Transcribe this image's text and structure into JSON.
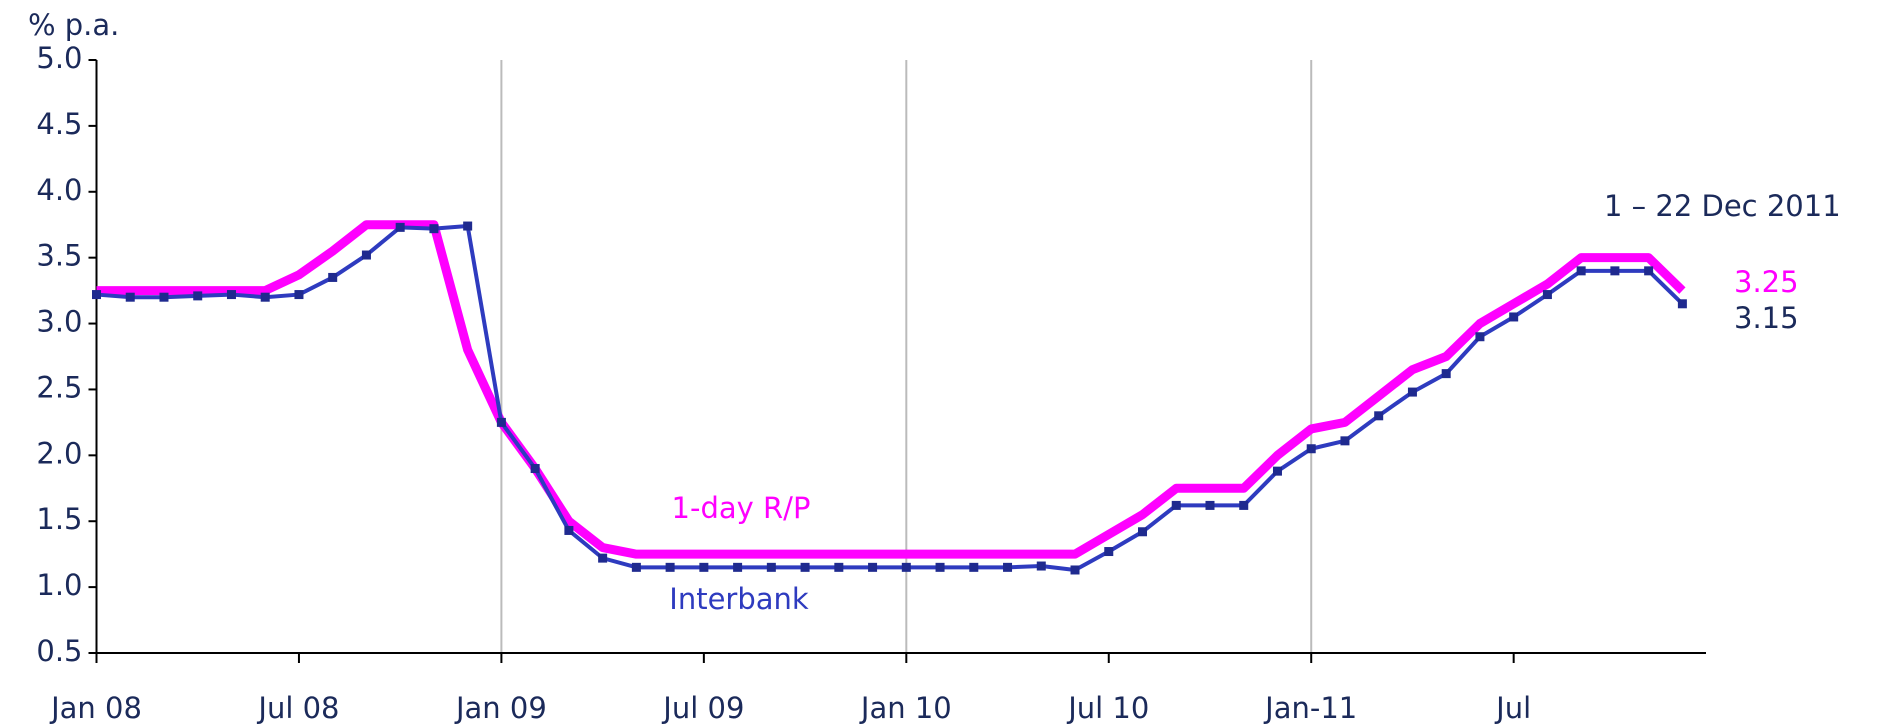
{
  "chart_data": {
    "type": "line",
    "y_label": "% p.a.",
    "annotation": "1 – 22 Dec 2011",
    "categories": [
      "Jan 08",
      null,
      null,
      null,
      null,
      null,
      "Jul 08",
      null,
      null,
      null,
      null,
      null,
      "Jan 09",
      null,
      null,
      null,
      null,
      null,
      "Jul 09",
      null,
      null,
      null,
      null,
      null,
      "Jan 10",
      null,
      null,
      null,
      null,
      null,
      "Jul 10",
      null,
      null,
      null,
      null,
      null,
      "Jan-11",
      null,
      null,
      null,
      null,
      null,
      "Jul",
      null,
      null,
      null,
      null,
      null
    ],
    "series": [
      {
        "name": "1-day R/P",
        "color": "#ff00ff",
        "values": [
          3.25,
          3.25,
          3.25,
          3.25,
          3.25,
          3.25,
          3.37,
          3.55,
          3.75,
          3.75,
          3.75,
          2.8,
          2.25,
          1.9,
          1.5,
          1.3,
          1.25,
          1.25,
          1.25,
          1.25,
          1.25,
          1.25,
          1.25,
          1.25,
          1.25,
          1.25,
          1.25,
          1.25,
          1.25,
          1.25,
          1.4,
          1.55,
          1.75,
          1.75,
          1.75,
          2.0,
          2.2,
          2.25,
          2.45,
          2.65,
          2.75,
          3.0,
          3.15,
          3.3,
          3.5,
          3.5,
          3.5,
          3.25
        ]
      },
      {
        "name": "Interbank",
        "color": "#2e3bbf",
        "values": [
          3.22,
          3.2,
          3.2,
          3.21,
          3.22,
          3.2,
          3.22,
          3.35,
          3.52,
          3.73,
          3.72,
          3.74,
          2.25,
          1.9,
          1.43,
          1.22,
          1.15,
          1.15,
          1.15,
          1.15,
          1.15,
          1.15,
          1.15,
          1.15,
          1.15,
          1.15,
          1.15,
          1.15,
          1.16,
          1.13,
          1.27,
          1.42,
          1.62,
          1.62,
          1.62,
          1.88,
          2.05,
          2.11,
          2.3,
          2.48,
          2.62,
          2.9,
          3.05,
          3.22,
          3.4,
          3.4,
          3.4,
          3.15
        ]
      }
    ],
    "ylim": [
      0.5,
      5.0
    ],
    "yticks": [
      0.5,
      {
        "value": 1,
        "label": "1.0"
      },
      1.5,
      {
        "value": 2,
        "label": "2.0"
      },
      2.5,
      {
        "value": 3,
        "label": "3.0"
      },
      3.5,
      {
        "value": 4,
        "label": "4.0"
      },
      4.5,
      {
        "value": 5,
        "label": "5.0"
      }
    ],
    "grid": "x"
  }
}
